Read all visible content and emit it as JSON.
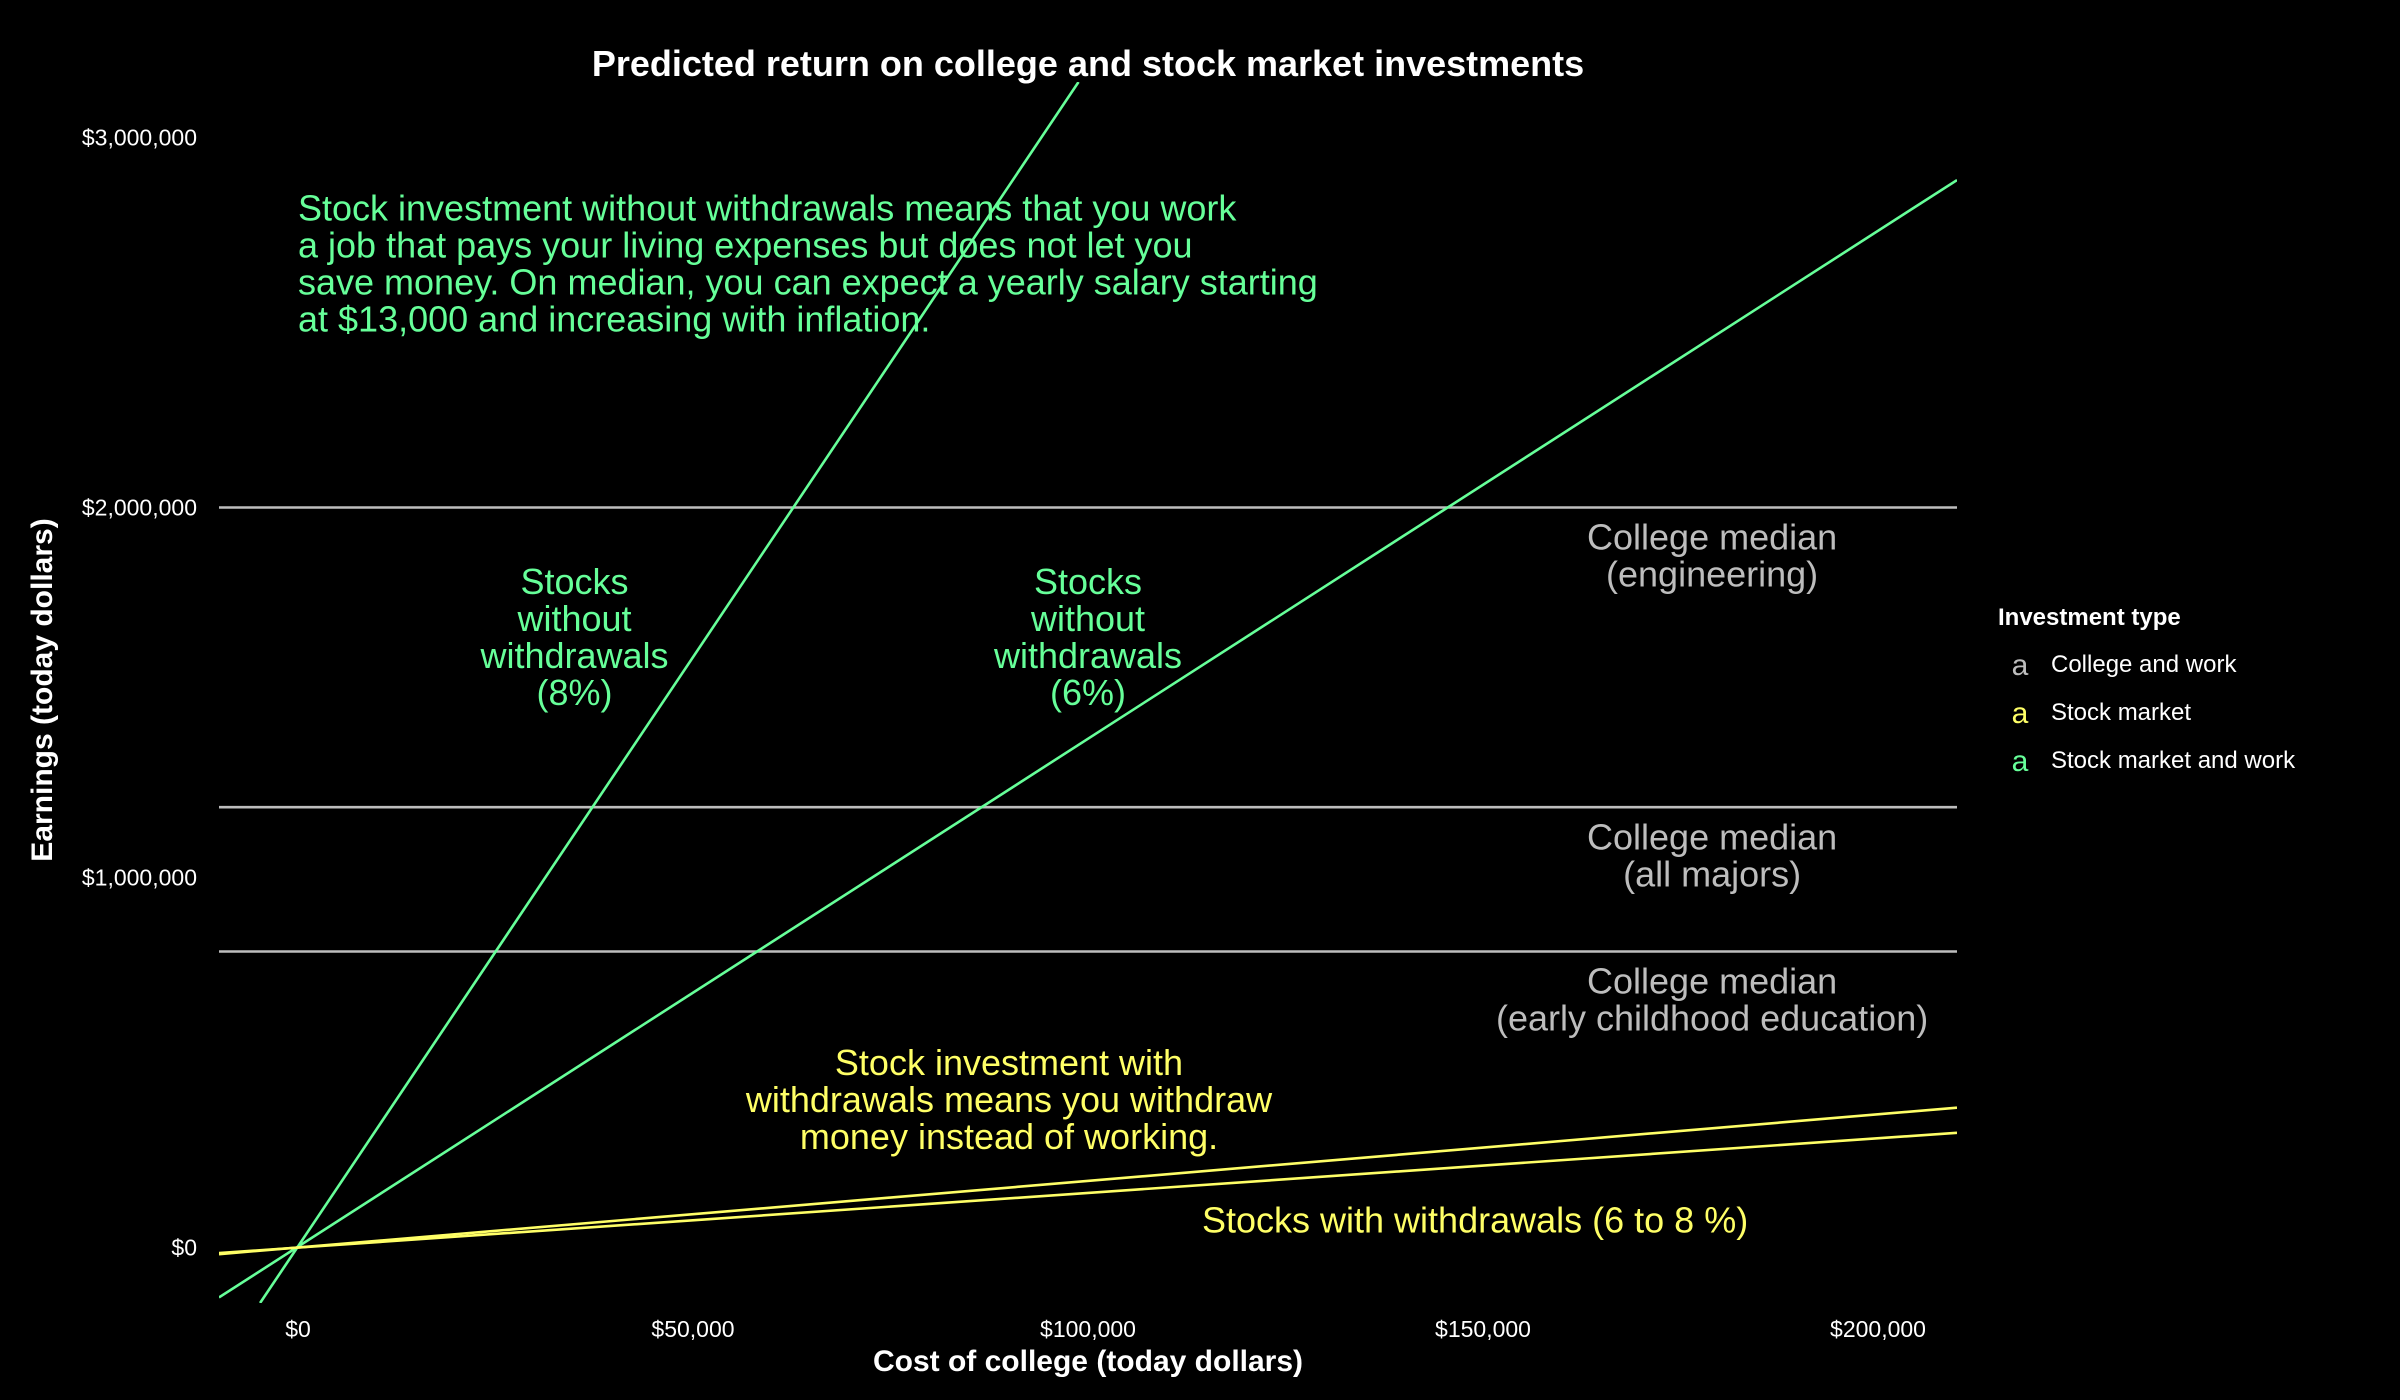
{
  "chart_data": {
    "type": "line",
    "title": "Predicted return on college and stock market investments",
    "xlabel": "Cost of college (today dollars)",
    "ylabel": "Earnings (today dollars)",
    "xlim": [
      -10000,
      210000
    ],
    "ylim": [
      -150000,
      3150000
    ],
    "x_ticks": [
      0,
      50000,
      100000,
      150000,
      200000
    ],
    "x_tick_labels": [
      "$0",
      "$50,000",
      "$100,000",
      "$150,000",
      "$200,000"
    ],
    "y_ticks": [
      0,
      1000000,
      2000000,
      3000000
    ],
    "y_tick_labels": [
      "$0",
      "$1,000,000",
      "$2,000,000",
      "$3,000,000"
    ],
    "grid": false,
    "legend_position": "right",
    "legend": {
      "title": "Investment type",
      "key_glyph": "a",
      "entries": [
        {
          "label": "College and work",
          "color": "#bdbdbd"
        },
        {
          "label": "Stock market",
          "color": "#ffff66"
        },
        {
          "label": "Stock market and work",
          "color": "#66ff99"
        }
      ]
    },
    "series": [
      {
        "type": "hline",
        "group": "College and work",
        "color": "#bdbdbd",
        "y": 2000000
      },
      {
        "type": "hline",
        "group": "College and work",
        "color": "#bdbdbd",
        "y": 1190000
      },
      {
        "type": "hline",
        "group": "College and work",
        "color": "#bdbdbd",
        "y": 800000
      },
      {
        "type": "line",
        "group": "Stock market and work",
        "color": "#66ff99",
        "x": [
          -4800,
          98800
        ],
        "y": [
          -150000,
          3150000
        ]
      },
      {
        "type": "line",
        "group": "Stock market and work",
        "color": "#66ff99",
        "x": [
          -10000,
          210000
        ],
        "y": [
          -135000,
          2885000
        ]
      },
      {
        "type": "line",
        "group": "Stock market",
        "color": "#ffff66",
        "x": [
          -10000,
          210000
        ],
        "y": [
          -18000,
          378000
        ]
      },
      {
        "type": "line",
        "group": "Stock market",
        "color": "#ffff66",
        "x": [
          -10000,
          210000
        ],
        "y": [
          -15000,
          310000
        ]
      }
    ],
    "annotations": [
      {
        "group": "Stock market and work",
        "color": "#66ff99",
        "x": 0,
        "y": 2660000,
        "align": "start",
        "lines": [
          "Stock investment without withdrawals means that you work",
          "a job that pays your living expenses but does not let you",
          "save money. On median, you can expect a yearly salary starting",
          "at $13,000 and increasing with inflation."
        ]
      },
      {
        "group": "Stock market and work",
        "color": "#66ff99",
        "x": 35000,
        "y": 1650000,
        "align": "middle",
        "lines": [
          "Stocks",
          "without",
          "withdrawals",
          "(8%)"
        ]
      },
      {
        "group": "Stock market and work",
        "color": "#66ff99",
        "x": 100000,
        "y": 1650000,
        "align": "middle",
        "lines": [
          "Stocks",
          "without",
          "withdrawals",
          "(6%)"
        ]
      },
      {
        "group": "College and work",
        "color": "#bdbdbd",
        "x": 179000,
        "y": 1870000,
        "align": "middle",
        "lines": [
          "College median",
          "(engineering)"
        ]
      },
      {
        "group": "College and work",
        "color": "#bdbdbd",
        "x": 179000,
        "y": 1060000,
        "align": "middle",
        "lines": [
          "College median",
          "(all majors)"
        ]
      },
      {
        "group": "College and work",
        "color": "#bdbdbd",
        "x": 179000,
        "y": 670000,
        "align": "middle",
        "lines": [
          "College median",
          "(early childhood education)"
        ]
      },
      {
        "group": "Stock market",
        "color": "#ffff66",
        "x": 90000,
        "y": 400000,
        "align": "middle",
        "lines": [
          "Stock investment with",
          "withdrawals means you withdraw",
          "money instead of working."
        ]
      },
      {
        "group": "Stock market",
        "color": "#ffff66",
        "x": 149000,
        "y": 75000,
        "align": "middle",
        "lines": [
          "Stocks with withdrawals (6 to 8 %)"
        ]
      }
    ]
  }
}
